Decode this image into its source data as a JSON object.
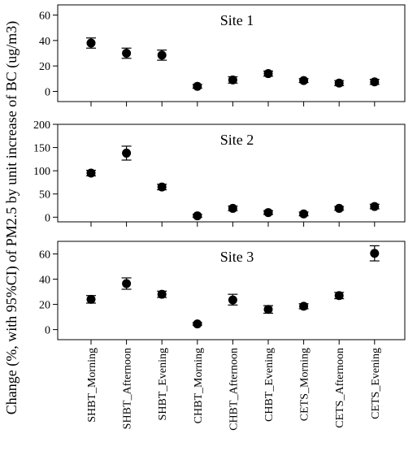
{
  "chart_data": {
    "type": "scatter",
    "ylabel": "Change (%, with 95%CI) of PM2.5 by unit increase of BC (ug/m3)",
    "categories": [
      "SHBT_Morning",
      "SHBT_Afternoon",
      "SHBT_Evening",
      "CHBT_Morning",
      "CHBT_Afternoon",
      "CHBT_Evening",
      "CETS_Morning",
      "CETS_Afternoon",
      "CETS_Evening"
    ],
    "panels": [
      {
        "title": "Site 1",
        "ylim": [
          -8,
          68
        ],
        "yticks": [
          0,
          20,
          40,
          60
        ],
        "values": [
          38,
          30,
          28.5,
          4,
          9,
          14,
          8.5,
          6.5,
          7.5
        ],
        "lower": [
          34,
          26,
          24.5,
          2.5,
          6.5,
          12,
          7,
          4.5,
          5.5
        ],
        "upper": [
          42,
          34,
          32.5,
          5.5,
          11.5,
          16,
          10,
          8.5,
          9.5
        ]
      },
      {
        "title": "Site 2",
        "ylim": [
          -10,
          200
        ],
        "yticks": [
          0,
          50,
          100,
          150,
          200
        ],
        "values": [
          95,
          138,
          65,
          3,
          19,
          10,
          7,
          19,
          23
        ],
        "lower": [
          89,
          123,
          59,
          0,
          14,
          6,
          3,
          15,
          18
        ],
        "upper": [
          101,
          153,
          71,
          6,
          24,
          14,
          11,
          23,
          28
        ]
      },
      {
        "title": "Site 3",
        "ylim": [
          -8,
          70
        ],
        "yticks": [
          0,
          20,
          40,
          60
        ],
        "values": [
          24,
          36.5,
          28,
          4.5,
          23.5,
          16,
          18.5,
          27,
          60.5
        ],
        "lower": [
          21,
          32,
          25.5,
          3.5,
          19.5,
          13,
          16.5,
          24.5,
          54.5
        ],
        "upper": [
          27,
          41,
          30.5,
          5.5,
          28,
          19,
          20.5,
          29.5,
          66.5
        ]
      }
    ]
  }
}
